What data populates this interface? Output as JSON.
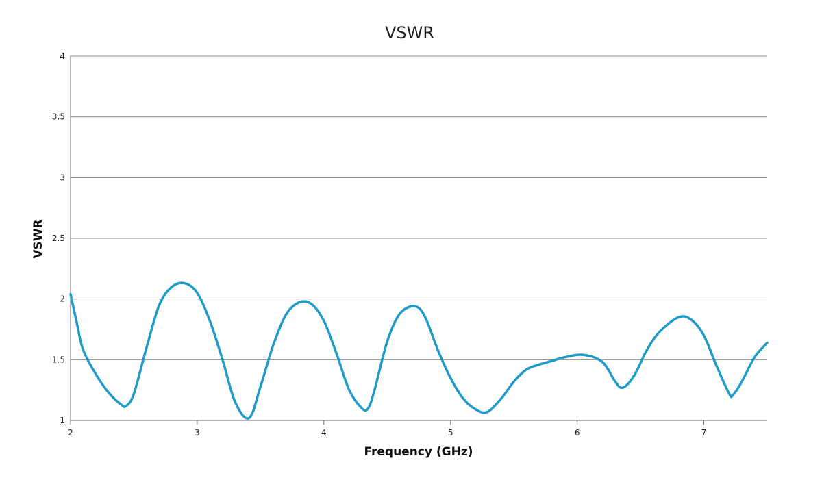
{
  "chart_data": {
    "type": "line",
    "title": "VSWR",
    "xlabel": "Frequency (GHz)",
    "ylabel": "VSWR",
    "xlim": [
      2,
      7.5
    ],
    "ylim": [
      1,
      4
    ],
    "x_ticks": [
      "2",
      "3",
      "4",
      "5",
      "6",
      "7"
    ],
    "y_ticks": [
      "1",
      "1.5",
      "2",
      "2.5",
      "3",
      "3.5",
      "4"
    ],
    "grid": true,
    "legend": "none",
    "series": [
      {
        "color": "#1f9bc8",
        "x": [
          2.0,
          2.05,
          2.1,
          2.2,
          2.3,
          2.4,
          2.44,
          2.5,
          2.6,
          2.7,
          2.8,
          2.9,
          3.0,
          3.1,
          3.2,
          3.3,
          3.41,
          3.5,
          3.6,
          3.7,
          3.8,
          3.9,
          4.0,
          4.1,
          4.2,
          4.3,
          4.35,
          4.4,
          4.5,
          4.6,
          4.72,
          4.8,
          4.9,
          5.0,
          5.1,
          5.2,
          5.29,
          5.4,
          5.5,
          5.6,
          5.7,
          5.8,
          5.9,
          6.05,
          6.2,
          6.3,
          6.36,
          6.45,
          6.55,
          6.65,
          6.8,
          6.9,
          7.0,
          7.1,
          7.2,
          7.23,
          7.3,
          7.4,
          7.5
        ],
        "y": [
          2.04,
          1.8,
          1.58,
          1.38,
          1.23,
          1.13,
          1.12,
          1.22,
          1.6,
          1.95,
          2.1,
          2.13,
          2.05,
          1.82,
          1.5,
          1.15,
          1.02,
          1.28,
          1.62,
          1.87,
          1.97,
          1.96,
          1.82,
          1.55,
          1.25,
          1.1,
          1.1,
          1.25,
          1.65,
          1.88,
          1.94,
          1.85,
          1.58,
          1.35,
          1.18,
          1.09,
          1.07,
          1.18,
          1.32,
          1.42,
          1.46,
          1.49,
          1.52,
          1.54,
          1.48,
          1.32,
          1.27,
          1.37,
          1.58,
          1.73,
          1.85,
          1.83,
          1.7,
          1.45,
          1.22,
          1.21,
          1.32,
          1.52,
          1.64
        ]
      }
    ]
  }
}
